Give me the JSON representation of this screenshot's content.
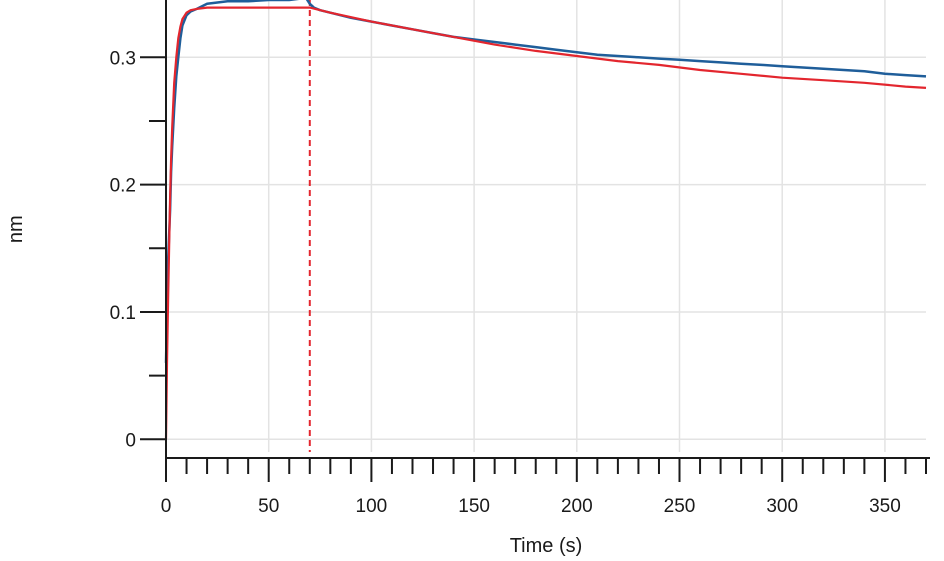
{
  "chart_data": {
    "type": "line",
    "xlabel": "Time (s)",
    "ylabel": "nm",
    "xlim": [
      0,
      370
    ],
    "ylim": [
      -0.01,
      0.345
    ],
    "x_ticks": [
      0,
      50,
      100,
      150,
      200,
      250,
      300,
      350
    ],
    "x_tick_labels": [
      "0",
      "50",
      "100",
      "150",
      "200",
      "250",
      "300",
      "350"
    ],
    "x_minor_step": 10,
    "y_ticks": [
      0,
      0.1,
      0.2,
      0.3
    ],
    "y_tick_labels": [
      "0",
      "0.1",
      "0.2",
      "0.3"
    ],
    "y_minor_step": 0.05,
    "grid": true,
    "legend": "none",
    "phase_markers": [
      0,
      70
    ],
    "series": [
      {
        "color": "#1f5e9a",
        "x": [
          0,
          0.5,
          1,
          1.5,
          2,
          2.5,
          3,
          4,
          5,
          6,
          7,
          8,
          10,
          12,
          15,
          20,
          25,
          30,
          40,
          50,
          60,
          65,
          68,
          70,
          72,
          75,
          80,
          90,
          100,
          110,
          120,
          130,
          140,
          150,
          160,
          170,
          180,
          190,
          200,
          210,
          220,
          230,
          240,
          250,
          260,
          270,
          280,
          290,
          300,
          310,
          320,
          330,
          340,
          350,
          360,
          370
        ],
        "y": [
          0.06,
          0.1,
          0.14,
          0.16,
          0.18,
          0.21,
          0.23,
          0.26,
          0.285,
          0.3,
          0.315,
          0.325,
          0.333,
          0.336,
          0.338,
          0.342,
          0.343,
          0.344,
          0.344,
          0.345,
          0.345,
          0.346,
          0.347,
          0.342,
          0.339,
          0.337,
          0.335,
          0.331,
          0.328,
          0.325,
          0.322,
          0.319,
          0.316,
          0.314,
          0.312,
          0.31,
          0.308,
          0.306,
          0.304,
          0.302,
          0.301,
          0.3,
          0.299,
          0.298,
          0.297,
          0.296,
          0.295,
          0.294,
          0.293,
          0.292,
          0.291,
          0.29,
          0.289,
          0.287,
          0.286,
          0.285
        ]
      },
      {
        "color": "#e3262e",
        "x": [
          0,
          0.5,
          1,
          1.5,
          2,
          2.5,
          3,
          4,
          5,
          6,
          7,
          8,
          10,
          12,
          15,
          20,
          30,
          40,
          50,
          60,
          70,
          80,
          100,
          120,
          140,
          160,
          180,
          200,
          220,
          240,
          260,
          280,
          300,
          320,
          340,
          360,
          370
        ],
        "y": [
          0.0,
          0.06,
          0.11,
          0.15,
          0.19,
          0.22,
          0.245,
          0.28,
          0.3,
          0.315,
          0.324,
          0.33,
          0.335,
          0.337,
          0.338,
          0.339,
          0.339,
          0.339,
          0.339,
          0.339,
          0.339,
          0.335,
          0.328,
          0.322,
          0.316,
          0.31,
          0.305,
          0.301,
          0.297,
          0.294,
          0.29,
          0.287,
          0.284,
          0.282,
          0.28,
          0.277,
          0.276
        ]
      }
    ]
  }
}
